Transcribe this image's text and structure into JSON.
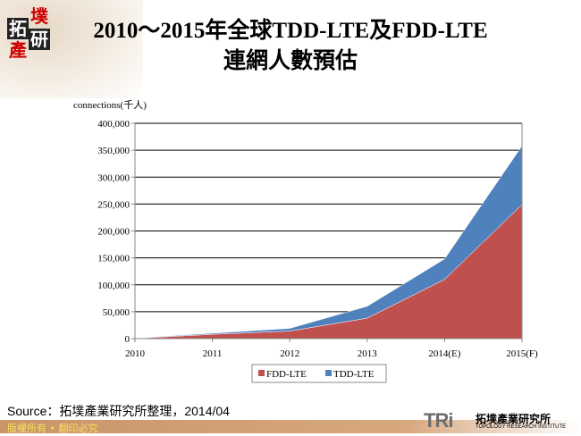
{
  "logo": {
    "chars": [
      "拓",
      "墣",
      "產",
      "研"
    ]
  },
  "title": {
    "line1": "2010～2015年全球TDD-LTE及FDD-LTE",
    "line2": "連網人數預估"
  },
  "chart_data": {
    "type": "area",
    "stacked": true,
    "ylabel": "connections(千人)",
    "categories": [
      "2010",
      "2011",
      "2012",
      "2013",
      "2014(E)",
      "2015(F)"
    ],
    "series": [
      {
        "name": "FDD-LTE",
        "color": "#c0504d",
        "values": [
          500,
          8000,
          14000,
          38000,
          110000,
          249000
        ]
      },
      {
        "name": "TDD-LTE",
        "color": "#4f81bd",
        "values": [
          500,
          2000,
          5000,
          22000,
          38000,
          109000
        ]
      }
    ],
    "ylim": [
      0,
      400000
    ],
    "yticks": [
      "0",
      "50,000",
      "100,000",
      "150,000",
      "200,000",
      "250,000",
      "300,000",
      "350,000",
      "400,000"
    ],
    "grid": true,
    "legend": "bottom"
  },
  "source": "Source：拓墣產業研究所整理，2014/04",
  "footer": "版權所有 • 翻印必究",
  "brand": {
    "mark": "TRi",
    "cn": "拓墣產業研究所",
    "en": "TOPOLOGY RESEARCH INSTITUTE"
  }
}
